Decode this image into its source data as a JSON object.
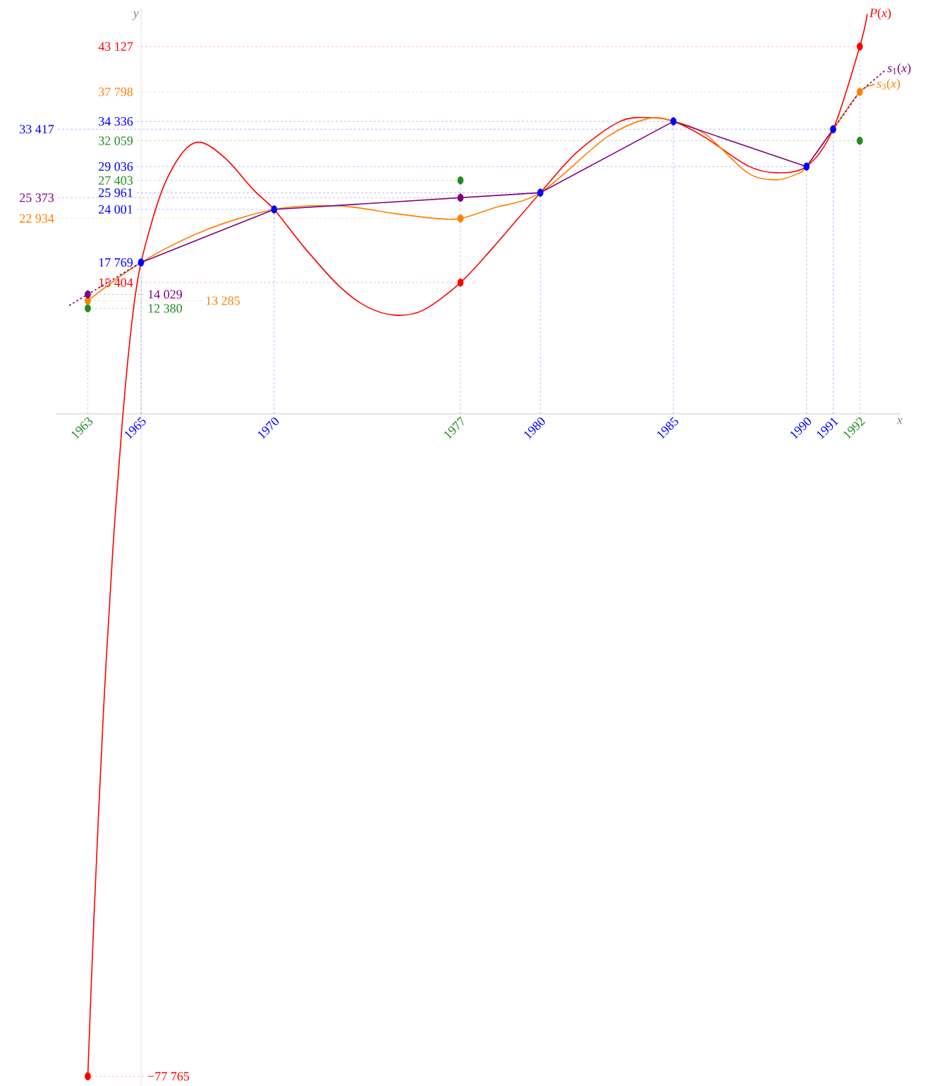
{
  "chart_data": {
    "type": "line",
    "xlabel": "*x*",
    "ylabel": "*y*",
    "xlim": [
      1961.8,
      1993.5
    ],
    "ylim": [
      -78900,
      47500
    ],
    "xticks": [
      1963,
      1965,
      1970,
      1977,
      1980,
      1985,
      1990,
      1991,
      1992
    ],
    "tick_labels": "x",
    "ref_lines": [
      {
        "axis": "x",
        "value": 1963,
        "color": "#228b22",
        "line_style": "dashed"
      },
      {
        "axis": "x",
        "value": 1965,
        "color": "#0000ff",
        "line_style": "dashed"
      },
      {
        "axis": "x",
        "value": 1970,
        "color": "#0000ff",
        "line_style": "dashed"
      },
      {
        "axis": "x",
        "value": 1977,
        "color": "#404040",
        "line_style": "dashed"
      },
      {
        "axis": "x",
        "value": 1980,
        "color": "#0000ff",
        "line_style": "dashed"
      },
      {
        "axis": "x",
        "value": 1985,
        "color": "#0000ff",
        "line_style": "dashed"
      },
      {
        "axis": "x",
        "value": 1990,
        "color": "#0000ff",
        "line_style": "dashed"
      },
      {
        "axis": "x",
        "value": 1991,
        "color": "#0000ff",
        "line_style": "dashed"
      },
      {
        "axis": "x",
        "value": 1992,
        "color": "#228b22",
        "line_style": "dashed"
      }
    ],
    "series": [
      {
        "name": "*P*(*x*)",
        "color": "#ff0000",
        "x": [
          1963,
          1963.233,
          1963.587,
          1963.94,
          1964.293,
          1964.647,
          1965,
          1965.79,
          1966.59,
          1967.25,
          1968.18,
          1969.24,
          1970,
          1971.11,
          1972.42,
          1973.48,
          1974.54,
          1975.6,
          1977,
          1978.25,
          1980,
          1981.4,
          1983.01,
          1984.2,
          1985,
          1986.19,
          1987.78,
          1988.84,
          1990,
          1991,
          1992,
          1992.28
        ],
        "values": [
          -77765,
          -59023,
          -35017,
          -15977,
          -1076,
          10513,
          17769,
          26242,
          30795,
          31871,
          29967,
          26242,
          24001,
          19619,
          15066,
          12583,
          11589,
          12169,
          15404,
          19619,
          25961,
          30795,
          34354,
          34768,
          34336,
          32450,
          29139,
          28311,
          29036,
          33417,
          43127,
          46937
        ]
      },
      {
        "name": "*s*$_{3}$(*x*)",
        "color": "#ff8000",
        "x": [
          1963,
          1965,
          1967.38,
          1970,
          1972.42,
          1974.54,
          1976.13,
          1977,
          1978.25,
          1980,
          1982.48,
          1984.07,
          1985,
          1986.19,
          1987.78,
          1988.84,
          1989.64,
          1990,
          1991,
          1992,
          1992.55
        ],
        "values": [
          13285,
          17769,
          21523,
          24001,
          24421,
          23510,
          22930,
          22934,
          24172,
          25961,
          32450,
          34685,
          34336,
          32864,
          28311,
          27483,
          28146,
          29036,
          33417,
          37798,
          38659
        ]
      },
      {
        "color": "#800080",
        "x": [
          1965,
          1970,
          1980,
          1985,
          1990,
          1991
        ],
        "values": [
          17769,
          24001,
          25961,
          34336,
          29036,
          33417
        ]
      },
      {
        "color": "#800080",
        "line_style": "dashed",
        "x": [
          1962.3,
          1963,
          1965
        ],
        "values": [
          12720,
          14029,
          17769
        ]
      },
      {
        "name": "*s*$_{1}$(*x*)",
        "color": "#800080",
        "line_style": "dashed",
        "x": [
          1991,
          1992,
          1992.95
        ],
        "values": [
          33417,
          37798,
          40315
        ]
      },
      {
        "type": "scatter",
        "marker": "circle",
        "color": "#0000ff",
        "x": [
          1965,
          1970,
          1980,
          1985,
          1990,
          1991
        ],
        "values": [
          17769,
          24001,
          25961,
          34336,
          29036,
          33417
        ],
        "value_labels": [
          "17 769",
          "24 001",
          "25 961",
          "34 336",
          "29 036",
          "33 417"
        ]
      },
      {
        "type": "scatter",
        "marker": "circle",
        "color": "#228b22",
        "x": [
          1963,
          1977,
          1992
        ],
        "values": [
          12380,
          27403,
          32059
        ],
        "value_labels": [
          "12 380",
          "27 403",
          "32 059"
        ]
      },
      {
        "type": "scatter",
        "marker": "circle",
        "color": "#ff0000",
        "x": [
          1963,
          1977,
          1992
        ],
        "values": [
          -77765,
          15404,
          43127
        ],
        "value_labels": [
          "−77 765",
          "15 404",
          "43 127"
        ]
      },
      {
        "type": "scatter",
        "marker": "circle",
        "color": "#ff8000",
        "x": [
          1963,
          1977,
          1992
        ],
        "values": [
          13285,
          22934,
          37798
        ],
        "value_labels": [
          "13 285",
          "22 934",
          "37 798"
        ]
      },
      {
        "type": "scatter",
        "marker": "circle",
        "color": "#800080",
        "x": [
          1963,
          1977
        ],
        "values": [
          14029,
          25373
        ],
        "value_labels": [
          "14 029",
          "25 373"
        ]
      }
    ]
  }
}
